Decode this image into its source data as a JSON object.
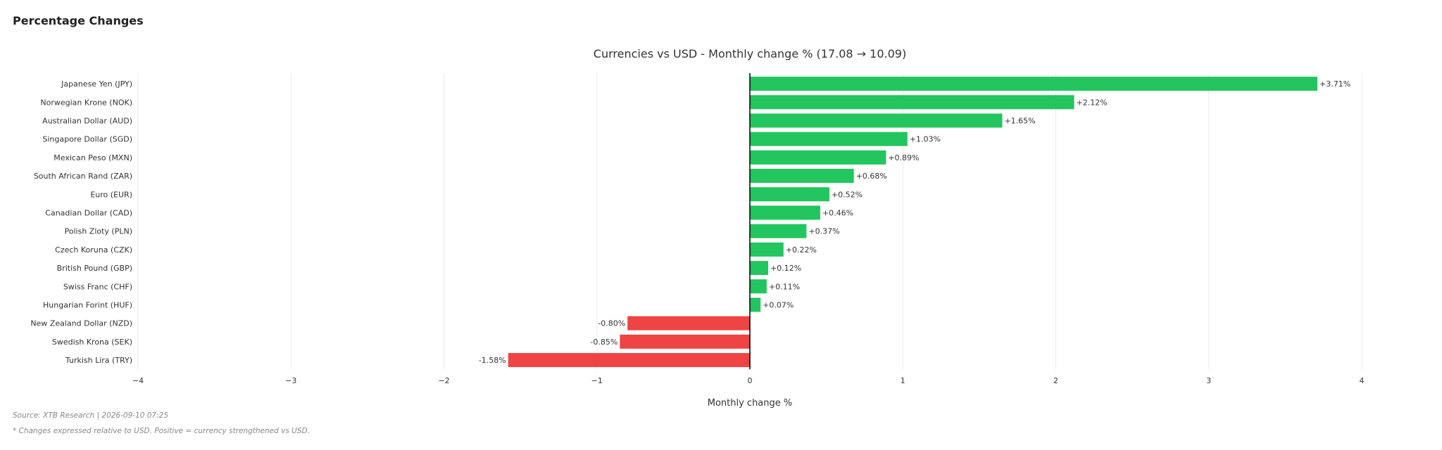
{
  "section": {
    "title": "Percentage Changes"
  },
  "chart_data": {
    "type": "bar",
    "orientation": "horizontal",
    "title": "Currencies vs USD - Monthly change % (17.08 → 10.09)",
    "xlabel": "Monthly change %",
    "ylabel": "",
    "xlim": [
      -4,
      4
    ],
    "xticks": [
      "−4",
      "−3",
      "−2",
      "−1",
      "0",
      "1",
      "2",
      "3",
      "4"
    ],
    "grid": true,
    "categories": [
      "Japanese Yen (JPY)",
      "Norwegian Krone (NOK)",
      "Australian Dollar (AUD)",
      "Singapore Dollar (SGD)",
      "Mexican Peso (MXN)",
      "South African Rand (ZAR)",
      "Euro (EUR)",
      "Canadian Dollar (CAD)",
      "Polish Zloty (PLN)",
      "Czech Koruna (CZK)",
      "British Pound (GBP)",
      "Swiss Franc (CHF)",
      "Hungarian Forint (HUF)",
      "New Zealand Dollar (NZD)",
      "Swedish Krona (SEK)",
      "Turkish Lira (TRY)"
    ],
    "values": [
      3.71,
      2.12,
      1.65,
      1.03,
      0.89,
      0.68,
      0.52,
      0.46,
      0.37,
      0.22,
      0.12,
      0.11,
      0.07,
      -0.8,
      -0.85,
      -1.58
    ],
    "data_labels": [
      "+3.71%",
      "+2.12%",
      "+1.65%",
      "+1.03%",
      "+0.89%",
      "+0.68%",
      "+0.52%",
      "+0.46%",
      "+0.37%",
      "+0.22%",
      "+0.12%",
      "+0.11%",
      "+0.07%",
      "-0.80%",
      "-0.85%",
      "-1.58%"
    ],
    "colors": {
      "positive": "#22c55e",
      "negative": "#ef4444"
    }
  },
  "footer": {
    "source": "Source: XTB Research | 2026-09-10 07:25",
    "note": "* Changes expressed relative to USD. Positive = currency strengthened vs USD."
  }
}
